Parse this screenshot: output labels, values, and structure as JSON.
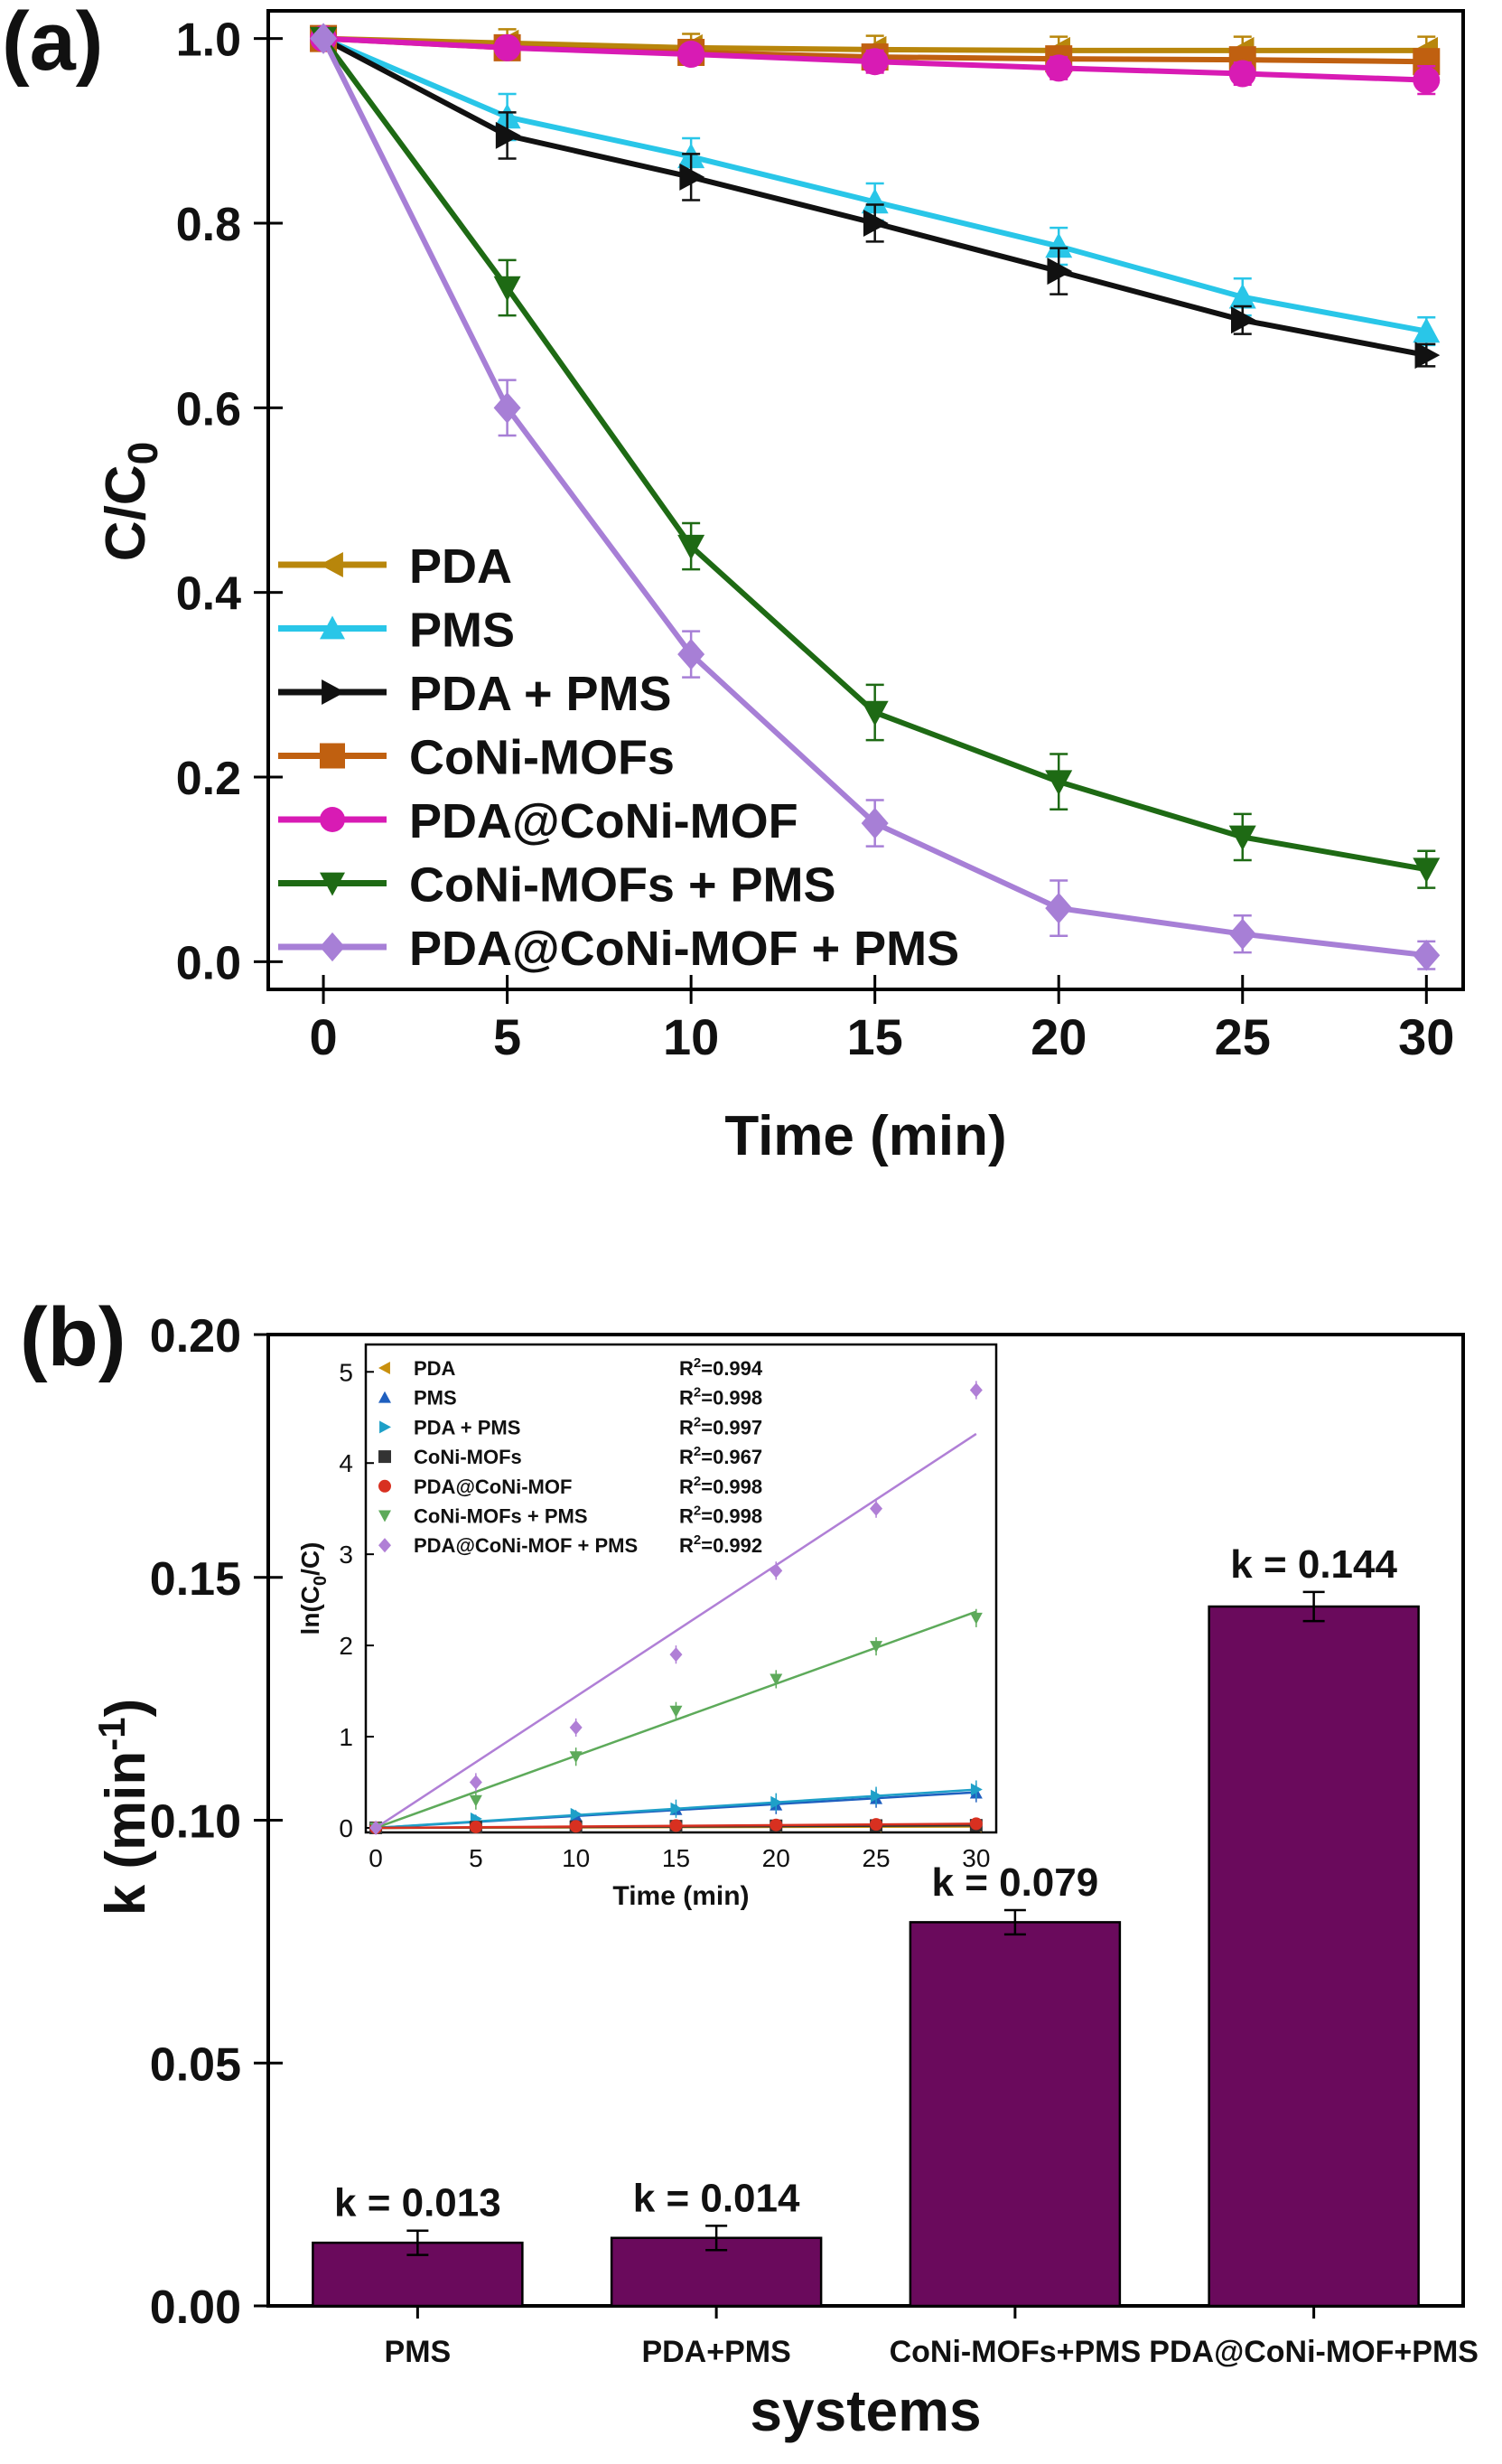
{
  "figure": {
    "panel_a_label": "(a)",
    "panel_b_label": "(b)"
  },
  "chart_data": [
    {
      "type": "line",
      "panel": "(a)",
      "xlabel": "Time (min)",
      "ylabel_main": "C/C",
      "ylabel_sub": "0",
      "xlim": [
        -1.5,
        31
      ],
      "ylim": [
        -0.03,
        1.03
      ],
      "xticks": [
        0,
        5,
        10,
        15,
        20,
        25,
        30
      ],
      "yticks": [
        "0.0",
        "0.2",
        "0.4",
        "0.6",
        "0.8",
        "1.0"
      ],
      "legend_position": "lower-left",
      "grid": false,
      "x": [
        0,
        5,
        10,
        15,
        20,
        25,
        30
      ],
      "series": [
        {
          "name": "PDA",
          "color": "#b8860b",
          "marker": "triangle-left",
          "values": [
            1.0,
            0.995,
            0.99,
            0.988,
            0.987,
            0.987,
            0.987
          ],
          "errors": [
            0.005,
            0.015,
            0.015,
            0.015,
            0.015,
            0.015,
            0.015
          ]
        },
        {
          "name": "PMS",
          "color": "#29c6e8",
          "marker": "triangle-up",
          "values": [
            1.0,
            0.915,
            0.872,
            0.823,
            0.775,
            0.72,
            0.683
          ],
          "errors": [
            0.005,
            0.025,
            0.02,
            0.02,
            0.02,
            0.02,
            0.015
          ]
        },
        {
          "name": "PDA + PMS",
          "color": "#111111",
          "marker": "triangle-right",
          "values": [
            1.0,
            0.895,
            0.85,
            0.8,
            0.748,
            0.695,
            0.657
          ],
          "errors": [
            0.005,
            0.025,
            0.025,
            0.02,
            0.025,
            0.015,
            0.012
          ]
        },
        {
          "name": "CoNi-MOFs",
          "color": "#c06010",
          "marker": "square",
          "values": [
            1.0,
            0.99,
            0.985,
            0.98,
            0.978,
            0.977,
            0.975
          ],
          "errors": [
            0.005,
            0.01,
            0.01,
            0.01,
            0.01,
            0.01,
            0.01
          ]
        },
        {
          "name": "PDA@CoNi-MOF",
          "color": "#d81bb4",
          "marker": "circle",
          "values": [
            1.0,
            0.99,
            0.983,
            0.975,
            0.968,
            0.962,
            0.955
          ],
          "errors": [
            0.005,
            0.01,
            0.01,
            0.012,
            0.012,
            0.012,
            0.015
          ]
        },
        {
          "name": "CoNi-MOFs + PMS",
          "color": "#1e6a14",
          "marker": "triangle-down",
          "values": [
            1.0,
            0.73,
            0.45,
            0.27,
            0.195,
            0.135,
            0.1
          ],
          "errors": [
            0.005,
            0.03,
            0.025,
            0.03,
            0.03,
            0.025,
            0.02
          ]
        },
        {
          "name": "PDA@CoNi-MOF + PMS",
          "color": "#a77fd6",
          "marker": "diamond",
          "values": [
            1.0,
            0.6,
            0.333,
            0.15,
            0.058,
            0.03,
            0.007
          ],
          "errors": [
            0.005,
            0.03,
            0.025,
            0.025,
            0.03,
            0.02,
            0.015
          ]
        }
      ]
    },
    {
      "type": "bar",
      "panel": "(b)",
      "xlabel": "systems",
      "ylabel_main": "k (min",
      "ylabel_sup": "-1",
      "ylabel_end": ")",
      "ylim": [
        0,
        0.2
      ],
      "yticks": [
        "0.00",
        "0.05",
        "0.10",
        "0.15",
        "0.20"
      ],
      "bar_color": "#6a0a5c",
      "categories": [
        "PMS",
        "PDA+PMS",
        "CoNi-MOFs+PMS",
        "PDA@CoNi-MOF+PMS"
      ],
      "values": [
        0.013,
        0.014,
        0.079,
        0.144
      ],
      "errors": [
        0.0025,
        0.0025,
        0.0025,
        0.003
      ],
      "data_labels": [
        "k = 0.013",
        "k = 0.014",
        "k = 0.079",
        "k = 0.144"
      ]
    },
    {
      "type": "scatter",
      "panel": "(b) inset",
      "xlabel": "Time (min)",
      "ylabel": "ln(C",
      "ylabel_sub": "0",
      "ylabel_end": "/C)",
      "xlim": [
        -0.5,
        31
      ],
      "ylim": [
        -0.05,
        5.3
      ],
      "xticks": [
        0,
        5,
        10,
        15,
        20,
        25,
        30
      ],
      "yticks": [
        0,
        1,
        2,
        3,
        4,
        5
      ],
      "legend_position": "top-left",
      "x": [
        0,
        5,
        10,
        15,
        20,
        25,
        30
      ],
      "series": [
        {
          "name": "PDA",
          "r2_label": "R",
          "r2_sup": "2",
          "r2_value": "=0.994",
          "color": "#c9900e",
          "marker": "triangle-left",
          "values": [
            0,
            0.005,
            0.008,
            0.012,
            0.015,
            0.015,
            0.016
          ],
          "slope": 0.0005
        },
        {
          "name": "PMS",
          "r2_label": "R",
          "r2_sup": "2",
          "r2_value": "=0.998",
          "color": "#1f5fbf",
          "marker": "triangle-up",
          "values": [
            0,
            0.08,
            0.13,
            0.2,
            0.25,
            0.32,
            0.38
          ],
          "slope": 0.013
        },
        {
          "name": "PDA + PMS",
          "r2_label": "R",
          "r2_sup": "2",
          "r2_value": "=0.997",
          "color": "#1ea0c8",
          "marker": "triangle-right",
          "values": [
            0,
            0.1,
            0.15,
            0.21,
            0.28,
            0.35,
            0.42
          ],
          "slope": 0.014
        },
        {
          "name": "CoNi-MOFs",
          "r2_label": "R",
          "r2_sup": "2",
          "r2_value": "=0.967",
          "color": "#333333",
          "marker": "square",
          "values": [
            0,
            0.008,
            0.012,
            0.018,
            0.022,
            0.025,
            0.028
          ],
          "slope": 0.0009
        },
        {
          "name": "PDA@CoNi-MOF",
          "r2_label": "R",
          "r2_sup": "2",
          "r2_value": "=0.998",
          "color": "#d83020",
          "marker": "circle",
          "values": [
            0,
            0.01,
            0.017,
            0.025,
            0.032,
            0.038,
            0.045
          ],
          "slope": 0.0015
        },
        {
          "name": "CoNi-MOFs + PMS",
          "r2_label": "R",
          "r2_sup": "2",
          "r2_value": "=0.998",
          "color": "#5daa5a",
          "marker": "triangle-down",
          "values": [
            0,
            0.3,
            0.78,
            1.28,
            1.63,
            1.99,
            2.3
          ],
          "slope": 0.079
        },
        {
          "name": "PDA@CoNi-MOF + PMS",
          "r2_label": "R",
          "r2_sup": "2",
          "r2_value": "=0.992",
          "color": "#b07fd6",
          "marker": "diamond",
          "values": [
            0,
            0.5,
            1.1,
            1.9,
            2.82,
            3.5,
            4.8
          ],
          "slope": 0.144
        }
      ]
    }
  ]
}
